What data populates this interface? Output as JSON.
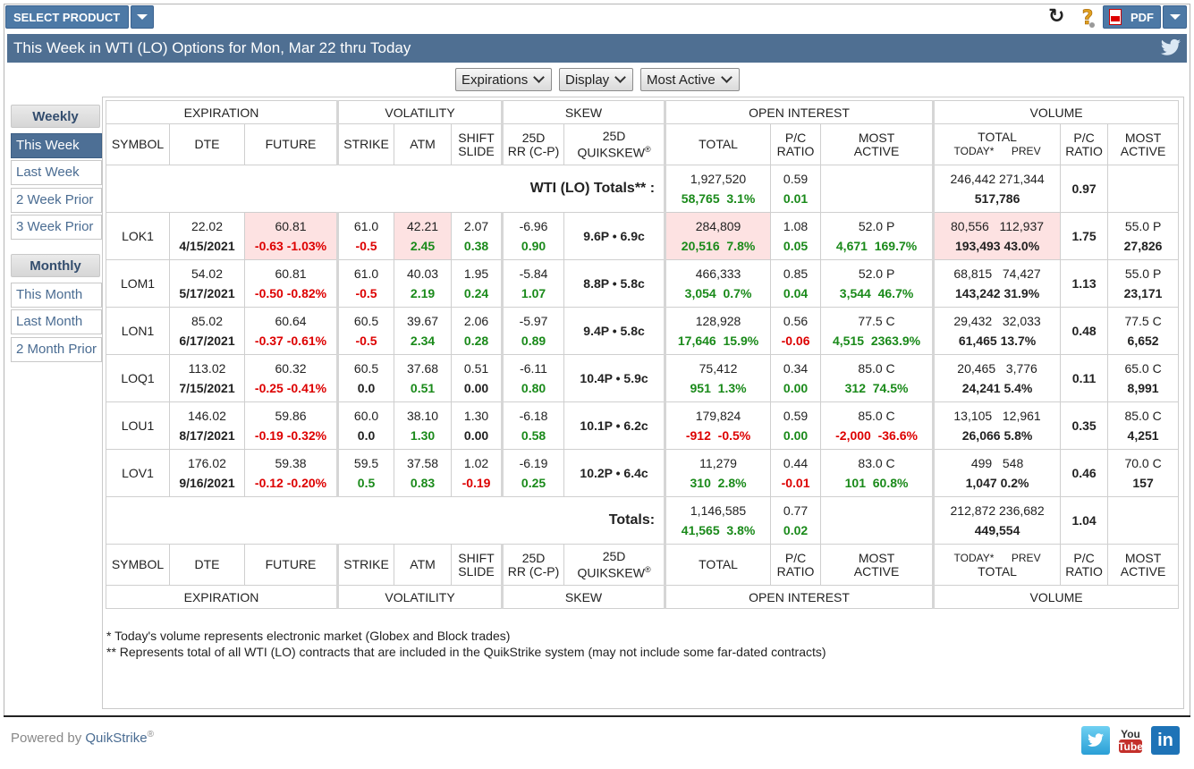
{
  "topbar": {
    "select_product": "SELECT PRODUCT",
    "pdf": "PDF"
  },
  "title": "This Week in WTI (LO) Options for Mon, Mar 22 thru Today",
  "dropdowns": [
    "Expirations",
    "Display",
    "Most Active"
  ],
  "sidebar": {
    "weekly_heading": "Weekly",
    "weekly_items": [
      "This Week",
      "Last Week",
      "2 Week Prior",
      "3 Week Prior"
    ],
    "monthly_heading": "Monthly",
    "monthly_items": [
      "This Month",
      "Last Month",
      "2 Month Prior"
    ]
  },
  "groups": {
    "expiration": "EXPIRATION",
    "volatility": "VOLATILITY",
    "skew": "SKEW",
    "open_interest": "OPEN INTEREST",
    "volume": "VOLUME"
  },
  "headers": {
    "symbol": "SYMBOL",
    "dte": "DTE",
    "future": "FUTURE",
    "strike": "STRIKE",
    "atm": "ATM",
    "shift1": "SHIFT",
    "shift2": "SLIDE",
    "rr1": "25D",
    "rr2": "RR (C-P)",
    "qs1": "25D",
    "qs2": "QUIKSKEW",
    "qs_mark": "®",
    "oi_total": "TOTAL",
    "pc1": "P/C",
    "pc2": "RATIO",
    "ma1": "MOST",
    "ma2": "ACTIVE",
    "vol_total": "TOTAL",
    "today": "TODAY*",
    "prev": "PREV"
  },
  "summary": {
    "label": "WTI (LO) Totals** :",
    "oi_total": "1,927,520",
    "oi_chg": "58,765",
    "oi_pct": "3.1%",
    "pc": "0.59",
    "pc_chg": "0.01",
    "vol_today": "246,442",
    "vol_prev": "271,344",
    "vol_total": "517,786",
    "vol_pc": "0.97"
  },
  "rows": [
    {
      "symbol": "LOK1",
      "dte": "22.02",
      "date": "4/15/2021",
      "future": "60.81",
      "fchg": "-0.63",
      "fpct": "-1.03%",
      "strike": "61.0",
      "sshift": "-0.5",
      "atm": "42.21",
      "atmchg": "2.45",
      "shift": "2.07",
      "slide": "0.38",
      "rr": "-6.96",
      "rrchg": "0.90",
      "qs": "9.6P • 6.9c",
      "oi": "284,809",
      "oichg": "20,516",
      "oipct": "7.8%",
      "pc": "1.08",
      "pcchg": "0.05",
      "ma": "52.0 P",
      "machg": "4,671",
      "mapct": "169.7%",
      "vtoday": "80,556",
      "vprev": "112,937",
      "vtotal": "193,493",
      "vpct": "43.0%",
      "vpc": "1.75",
      "vma": "55.0 P",
      "vmavol": "27,826"
    },
    {
      "symbol": "LOM1",
      "dte": "54.02",
      "date": "5/17/2021",
      "future": "60.81",
      "fchg": "-0.50",
      "fpct": "-0.82%",
      "strike": "61.0",
      "sshift": "-0.5",
      "atm": "40.03",
      "atmchg": "2.19",
      "shift": "1.95",
      "slide": "0.24",
      "rr": "-5.84",
      "rrchg": "1.07",
      "qs": "8.8P • 5.8c",
      "oi": "466,333",
      "oichg": "3,054",
      "oipct": "0.7%",
      "pc": "0.85",
      "pcchg": "0.04",
      "ma": "52.0 P",
      "machg": "3,544",
      "mapct": "46.7%",
      "vtoday": "68,815",
      "vprev": "74,427",
      "vtotal": "143,242",
      "vpct": "31.9%",
      "vpc": "1.13",
      "vma": "55.0 P",
      "vmavol": "23,171"
    },
    {
      "symbol": "LON1",
      "dte": "85.02",
      "date": "6/17/2021",
      "future": "60.64",
      "fchg": "-0.37",
      "fpct": "-0.61%",
      "strike": "60.5",
      "sshift": "-0.5",
      "atm": "39.67",
      "atmchg": "2.34",
      "shift": "2.06",
      "slide": "0.28",
      "rr": "-5.97",
      "rrchg": "0.89",
      "qs": "9.4P • 5.8c",
      "oi": "128,928",
      "oichg": "17,646",
      "oipct": "15.9%",
      "pc": "0.56",
      "pcchg": "-0.06",
      "ma": "77.5 C",
      "machg": "4,515",
      "mapct": "2363.9%",
      "vtoday": "29,432",
      "vprev": "32,033",
      "vtotal": "61,465",
      "vpct": "13.7%",
      "vpc": "0.48",
      "vma": "77.5 C",
      "vmavol": "6,652"
    },
    {
      "symbol": "LOQ1",
      "dte": "113.02",
      "date": "7/15/2021",
      "future": "60.32",
      "fchg": "-0.25",
      "fpct": "-0.41%",
      "strike": "60.5",
      "sshift": "0.0",
      "atm": "37.68",
      "atmchg": "0.51",
      "shift": "0.51",
      "slide": "0.00",
      "rr": "-6.11",
      "rrchg": "0.80",
      "qs": "10.4P • 5.9c",
      "oi": "75,412",
      "oichg": "951",
      "oipct": "1.3%",
      "pc": "0.34",
      "pcchg": "0.00",
      "ma": "85.0 C",
      "machg": "312",
      "mapct": "74.5%",
      "vtoday": "20,465",
      "vprev": "3,776",
      "vtotal": "24,241",
      "vpct": "5.4%",
      "vpc": "0.11",
      "vma": "65.0 C",
      "vmavol": "8,991"
    },
    {
      "symbol": "LOU1",
      "dte": "146.02",
      "date": "8/17/2021",
      "future": "59.86",
      "fchg": "-0.19",
      "fpct": "-0.32%",
      "strike": "60.0",
      "sshift": "0.0",
      "atm": "38.10",
      "atmchg": "1.30",
      "shift": "1.30",
      "slide": "0.00",
      "rr": "-6.18",
      "rrchg": "0.58",
      "qs": "10.1P • 6.2c",
      "oi": "179,824",
      "oichg": "-912",
      "oipct": "-0.5%",
      "pc": "0.59",
      "pcchg": "0.00",
      "ma": "85.0 C",
      "machg": "-2,000",
      "mapct": "-36.6%",
      "vtoday": "13,105",
      "vprev": "12,961",
      "vtotal": "26,066",
      "vpct": "5.8%",
      "vpc": "0.35",
      "vma": "85.0 C",
      "vmavol": "4,251"
    },
    {
      "symbol": "LOV1",
      "dte": "176.02",
      "date": "9/16/2021",
      "future": "59.38",
      "fchg": "-0.12",
      "fpct": "-0.20%",
      "strike": "59.5",
      "sshift": "0.5",
      "atm": "37.58",
      "atmchg": "0.83",
      "shift": "1.02",
      "slide": "-0.19",
      "rr": "-6.19",
      "rrchg": "0.25",
      "qs": "10.2P • 6.4c",
      "oi": "11,279",
      "oichg": "310",
      "oipct": "2.8%",
      "pc": "0.44",
      "pcchg": "-0.01",
      "ma": "83.0 C",
      "machg": "101",
      "mapct": "60.8%",
      "vtoday": "499",
      "vprev": "548",
      "vtotal": "1,047",
      "vpct": "0.2%",
      "vpc": "0.46",
      "vma": "70.0 C",
      "vmavol": "157"
    }
  ],
  "totals": {
    "label": "Totals:",
    "oi": "1,146,585",
    "oichg": "41,565",
    "oipct": "3.8%",
    "pc": "0.77",
    "pcchg": "0.02",
    "vtoday": "212,872",
    "vprev": "236,682",
    "vtotal": "449,554",
    "vpc": "1.04"
  },
  "notes": [
    "* Today's volume represents electronic market (Globex and Block trades)",
    "** Represents total of all WTI (LO) contracts that are included in the QuikStrike system (may not include some far-dated contracts)"
  ],
  "footer": {
    "powered": "Powered by ",
    "brand": "QuikStrike",
    "reg": "®"
  },
  "colors": {
    "accent": "#4d79a6",
    "title_bar": "#4f6f92",
    "negative": "#dd0000",
    "positive": "#1a8a1a",
    "highlight": "#fde2e2"
  },
  "icons": [
    "refresh-icon",
    "help-icon",
    "pdf-icon",
    "twitter-icon",
    "youtube-icon",
    "linkedin-icon"
  ]
}
